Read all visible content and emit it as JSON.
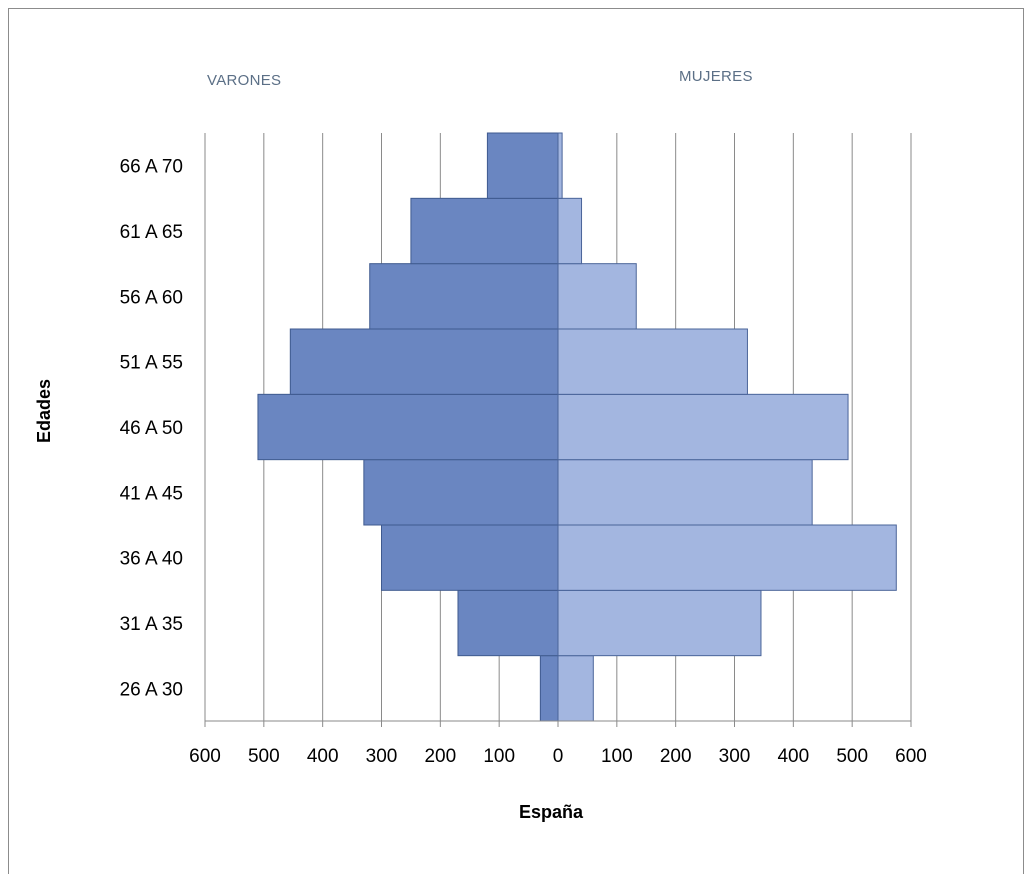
{
  "chart_data": {
    "type": "bar",
    "orientation": "horizontal",
    "subtype": "population-pyramid",
    "categories": [
      "26 A 30",
      "31 A 35",
      "36 A 40",
      "41 A 45",
      "46 A 50",
      "51 A 55",
      "56 A 60",
      "61 A 65",
      "66 A 70"
    ],
    "series": [
      {
        "name": "VARONES",
        "values": [
          30,
          170,
          300,
          330,
          510,
          455,
          320,
          250,
          120
        ],
        "color": "#6a86c1"
      },
      {
        "name": "MUJERES",
        "values": [
          60,
          345,
          575,
          432,
          493,
          322,
          133,
          40,
          7
        ],
        "color": "#a3b6e0"
      }
    ],
    "xlabel": "España",
    "ylabel": "Edades",
    "xlim": [
      -600,
      600
    ],
    "xticks": [
      -600,
      -500,
      -400,
      -300,
      -200,
      -100,
      0,
      100,
      200,
      300,
      400,
      500,
      600
    ],
    "xtick_labels": [
      "600",
      "500",
      "400",
      "300",
      "200",
      "100",
      "0",
      "100",
      "200",
      "300",
      "400",
      "500",
      "600"
    ],
    "grid": "vertical",
    "bar_gap": 0
  }
}
